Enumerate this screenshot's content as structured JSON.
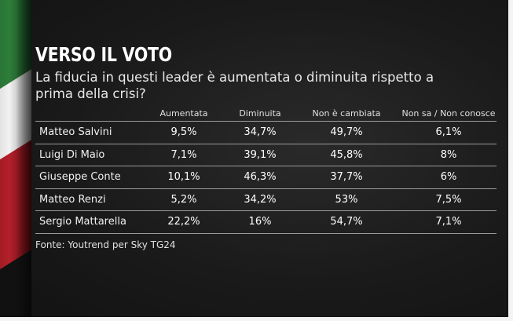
{
  "title": "VERSO IL VOTO",
  "subtitle": "La fiducia in questi leader è aumentata o diminuita rispetto a prima della crisi?",
  "source": "Fonte: Youtrend per Sky TG24",
  "colors": {
    "background": "#1a1a1a",
    "text": "#ffffff",
    "gridline": "#9a9a9a"
  },
  "chart_data": {
    "type": "table",
    "title": "VERSO IL VOTO",
    "subtitle": "La fiducia in questi leader è aumentata o diminuita rispetto a prima della crisi?",
    "columns": [
      "Aumentata",
      "Diminuita",
      "Non è cambiata",
      "Non sa / Non conosce"
    ],
    "rows": [
      {
        "name": "Matteo Salvini",
        "values": [
          "9,5%",
          "34,7%",
          "49,7%",
          "6,1%"
        ]
      },
      {
        "name": "Luigi Di Maio",
        "values": [
          "7,1%",
          "39,1%",
          "45,8%",
          "8%"
        ]
      },
      {
        "name": "Giuseppe Conte",
        "values": [
          "10,1%",
          "46,3%",
          "37,7%",
          "6%"
        ]
      },
      {
        "name": "Matteo Renzi",
        "values": [
          "5,2%",
          "34,2%",
          "53%",
          "7,5%"
        ]
      },
      {
        "name": "Sergio Mattarella",
        "values": [
          "22,2%",
          "16%",
          "54,7%",
          "7,1%"
        ]
      }
    ]
  }
}
